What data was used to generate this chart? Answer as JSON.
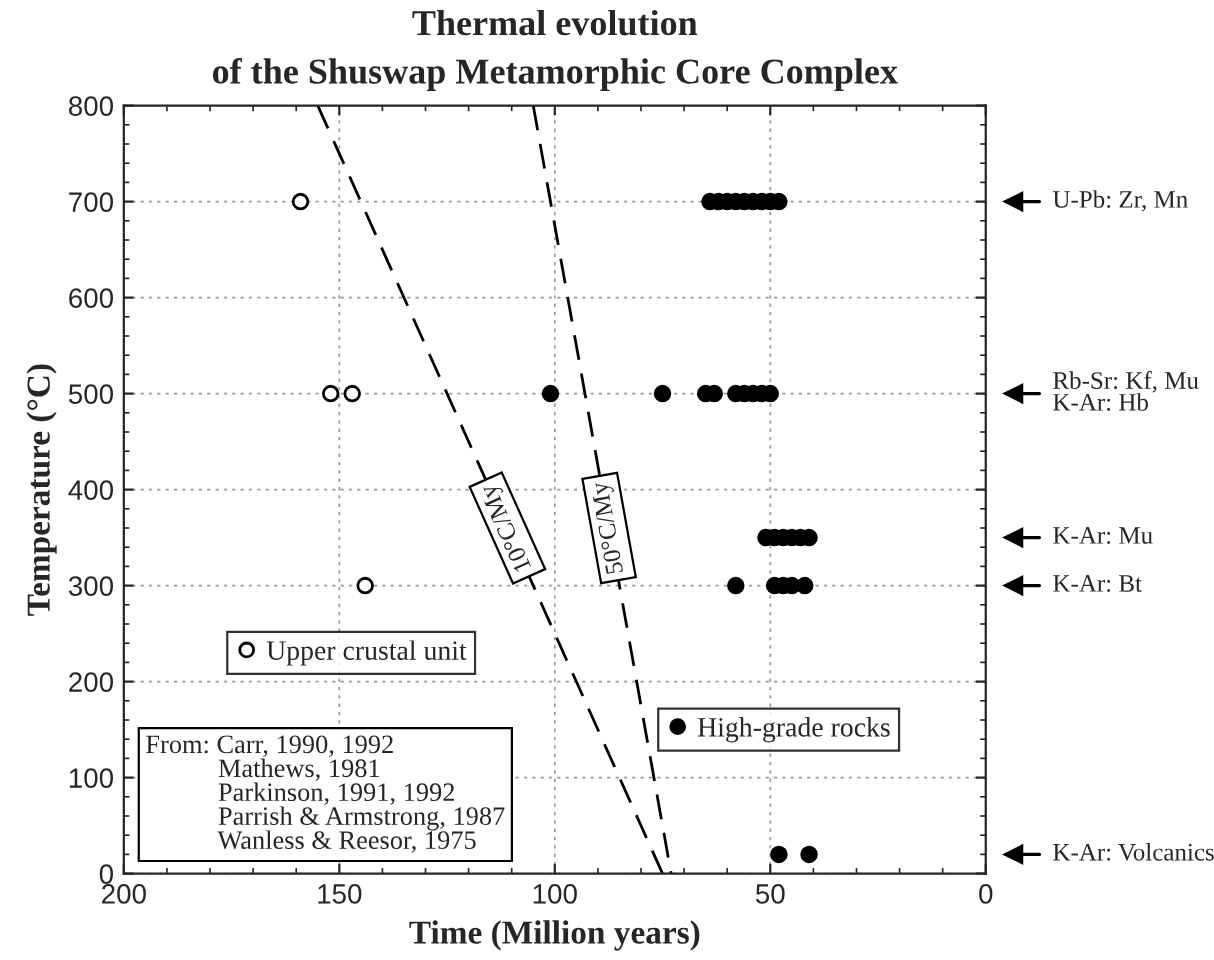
{
  "chart_data": {
    "type": "scatter",
    "title": "Thermal evolution\nof the Shuswap Metamorphic Core Complex",
    "xlabel": "Time (Million years)",
    "ylabel": "Temperature (°C)",
    "xlim": [
      200,
      0
    ],
    "xticks": [
      200,
      150,
      100,
      50,
      0
    ],
    "ylim": [
      0,
      800
    ],
    "yticks": [
      0,
      100,
      200,
      300,
      400,
      500,
      600,
      700,
      800
    ],
    "grid": true,
    "legend": "bottom",
    "series": [
      {
        "name": "Upper crustal unit",
        "marker": "circle",
        "color": "#ffffff",
        "x": [
          159,
          152,
          147,
          144
        ],
        "values": [
          700,
          500,
          500,
          300
        ]
      },
      {
        "name": "High-grade rocks",
        "marker": "circle",
        "color": "#000000",
        "x": [
          64,
          62,
          60,
          58,
          56,
          54,
          52,
          50,
          48,
          101,
          75,
          65,
          63,
          58,
          56,
          54,
          52,
          50,
          51,
          49,
          47,
          45,
          43,
          41,
          58,
          49,
          47,
          45,
          42,
          48,
          41
        ],
        "values": [
          700,
          700,
          700,
          700,
          700,
          700,
          700,
          700,
          700,
          500,
          500,
          500,
          500,
          500,
          500,
          500,
          500,
          500,
          350,
          350,
          350,
          350,
          350,
          350,
          300,
          300,
          300,
          300,
          300,
          20,
          20
        ]
      },
      {
        "name": "10°C/My",
        "type": "line",
        "line_style": "dashed",
        "color": "#000000",
        "x": [
          155,
          75
        ],
        "values": [
          800,
          0
        ]
      },
      {
        "name": "50°C/My",
        "type": "line",
        "line_style": "dashed",
        "color": "#000000",
        "x": [
          105,
          73
        ],
        "values": [
          800,
          0
        ]
      }
    ],
    "ref_lines": [
      {
        "axis": "y",
        "value": 700,
        "label": "U-Pb: Zr, Mn"
      },
      {
        "axis": "y",
        "value": 500,
        "label": "Rb-Sr: Kf, Mu\nK-Ar: Hb"
      },
      {
        "axis": "y",
        "value": 350,
        "label": "K-Ar: Mu"
      },
      {
        "axis": "y",
        "value": 300,
        "label": "K-Ar: Bt"
      },
      {
        "axis": "y",
        "value": 20,
        "label": "K-Ar: Volcanics"
      }
    ],
    "annotations": [
      "From: Carr, 1990, 1992\n           Mathews, 1981\n           Parkinson, 1991, 1992\n           Parrish & Armstrong, 1987\n           Wanless & Reesor, 1975"
    ]
  }
}
